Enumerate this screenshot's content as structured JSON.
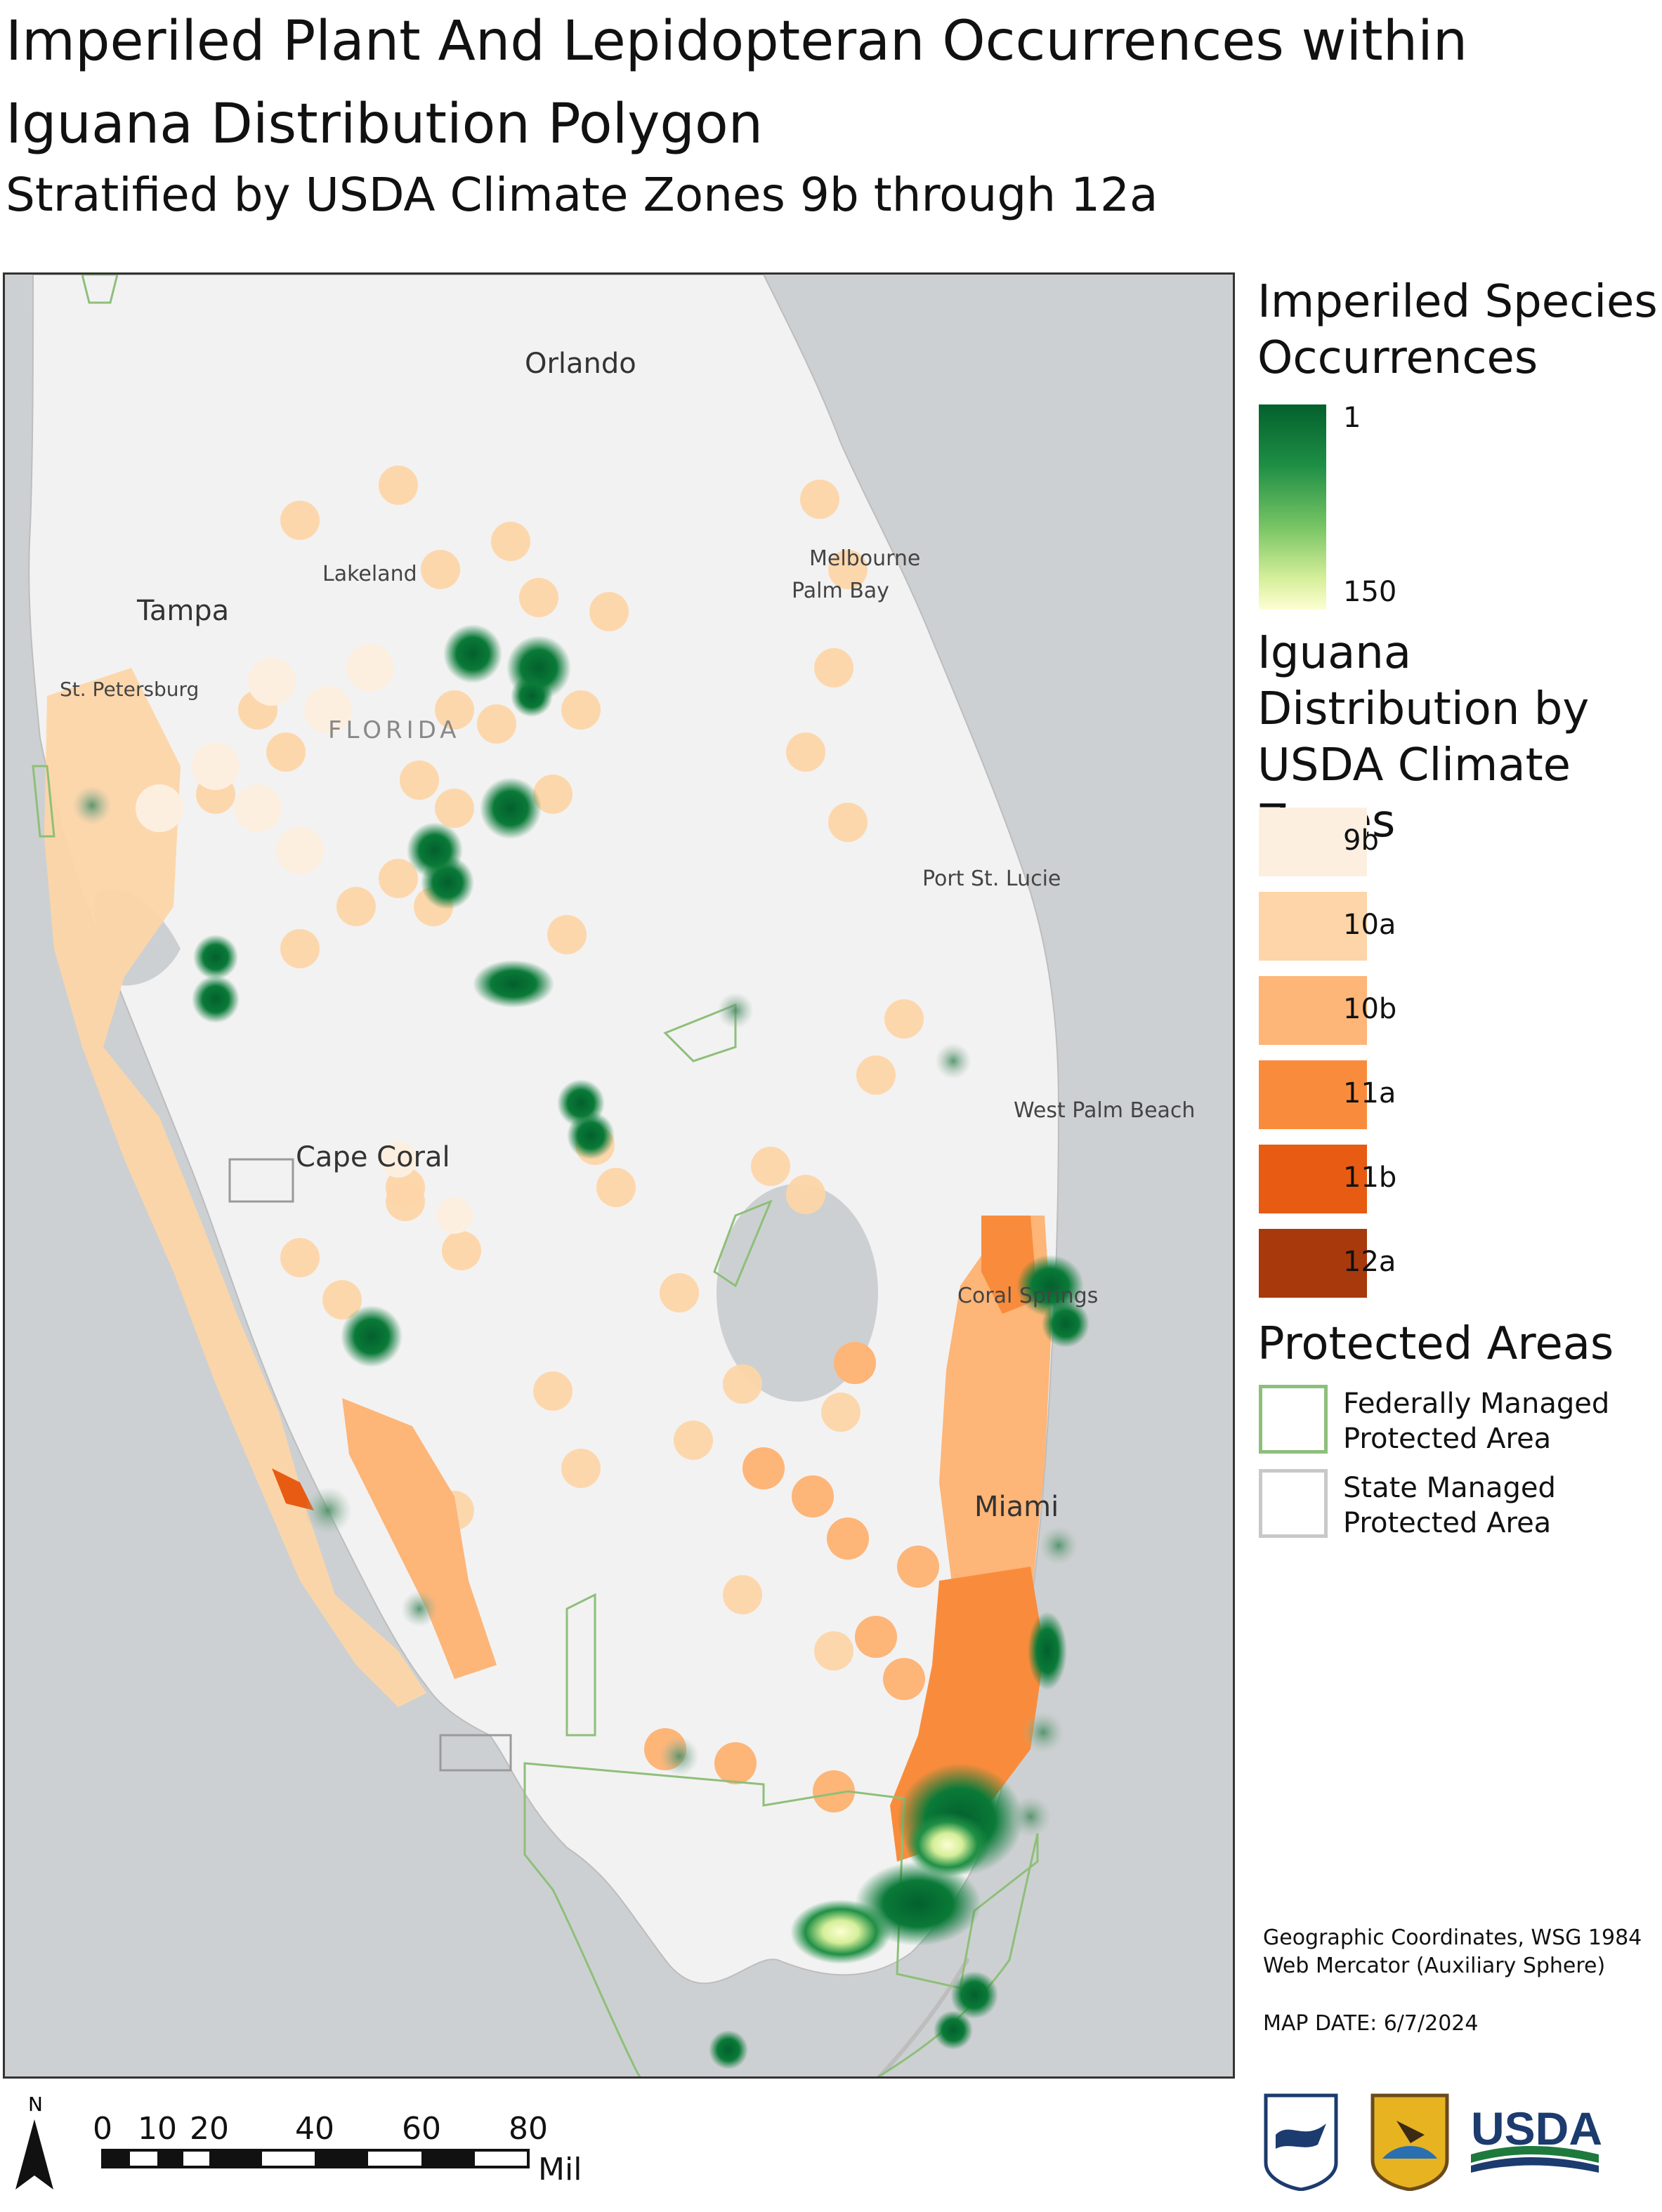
{
  "title": "Imperiled Plant And Lepidopteran Occurrences within Iguana Distribution Polygon",
  "subtitle": "Stratified by USDA Climate Zones 9b through 12a",
  "map": {
    "place_labels": [
      "Orlando",
      "Lakeland",
      "Tampa",
      "St. Petersburg",
      "FLORIDA",
      "Melbourne",
      "Palm Bay",
      "Port St. Lucie",
      "West Palm Beach",
      "Cape Coral",
      "Coral Springs",
      "Miami"
    ]
  },
  "legend": {
    "occurrences_title": "Imperiled Species Occurrences",
    "occurrences_min": "1",
    "occurrences_max": "150",
    "zones_title": "Iguana Distribution by USDA Climate Zones",
    "zones": [
      {
        "label": "9b",
        "color": "#fdefe0"
      },
      {
        "label": "10a",
        "color": "#fdd5a8"
      },
      {
        "label": "10b",
        "color": "#fdb578"
      },
      {
        "label": "11a",
        "color": "#f98c3c"
      },
      {
        "label": "11b",
        "color": "#e75b12"
      },
      {
        "label": "12a",
        "color": "#a8390c"
      }
    ],
    "protected_title": "Protected Areas",
    "federal_label": "Federally Managed Protected Area",
    "state_label": "State Managed Protected Area"
  },
  "coordinate_system": "Geographic Coordinates, WSG 1984 Web Mercator (Auxiliary Sphere)",
  "map_date": "MAP DATE: 6/7/2024",
  "north_label": "N",
  "scale": {
    "ticks": [
      "0",
      "10",
      "20",
      "40",
      "60",
      "80"
    ],
    "unit": "Miles"
  },
  "logos": {
    "nwrs": "NATIONAL WILDLIFE REFUGE SYSTEM",
    "fws": "U.S. FISH & WILDLIFE SERVICE",
    "usda": "USDA"
  }
}
